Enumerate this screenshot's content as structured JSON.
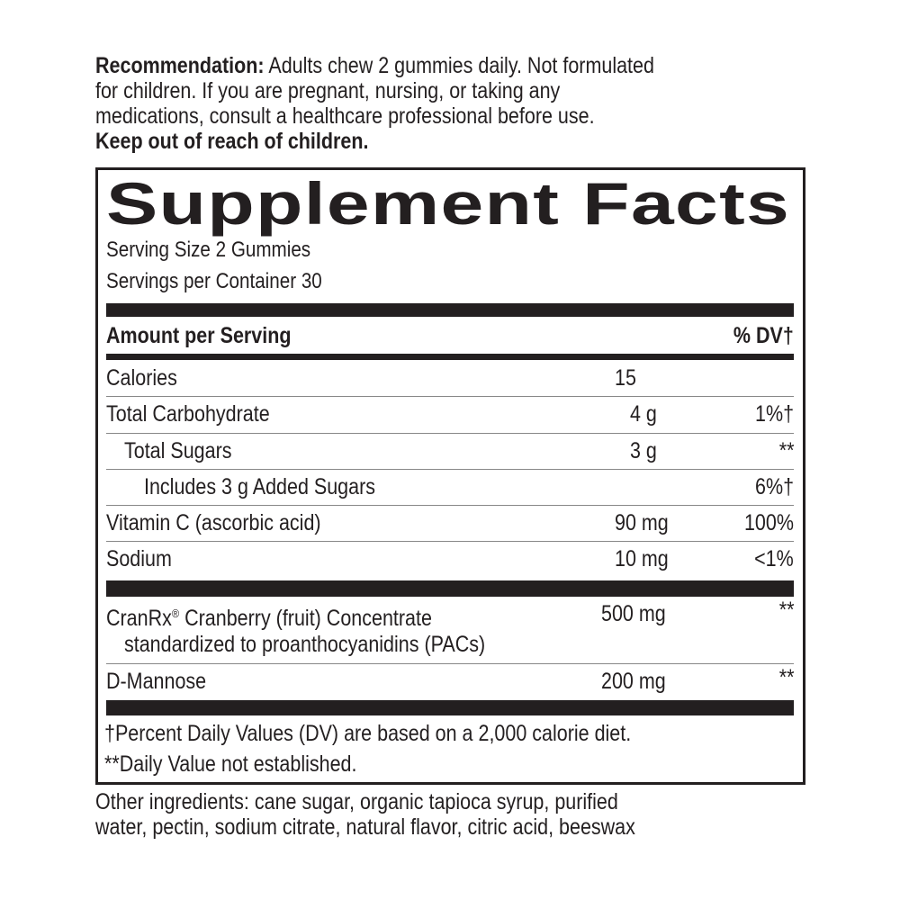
{
  "recommendation": {
    "label": "Recommendation:",
    "lines": [
      " Adults chew 2 gummies daily. Not formulated",
      "for children. If you are pregnant, nursing, or taking any",
      "medications, consult a healthcare professional before use."
    ],
    "warning": "Keep out of reach of children."
  },
  "facts": {
    "title": "Supplement Facts",
    "serving_size": "Serving Size 2 Gummies",
    "servings_per_container": "Servings per Container 30",
    "header_amount": "Amount per Serving",
    "header_dv": "% DV†",
    "rows": [
      {
        "name": "Calories",
        "amount": "15",
        "dv": ""
      },
      {
        "name": "Total Carbohydrate",
        "amount": "4 g",
        "dv": "1%†"
      },
      {
        "name": "Total Sugars",
        "amount": "3 g",
        "dv": "**"
      },
      {
        "name": "Includes 3 g Added Sugars",
        "amount": "",
        "dv": "6%†"
      },
      {
        "name": "Vitamin C (ascorbic acid)",
        "amount": "90 mg",
        "dv": "100%"
      },
      {
        "name": "Sodium",
        "amount": "10 mg",
        "dv": "<1%"
      }
    ],
    "specialty": [
      {
        "name": "CranRx",
        "reg": "®",
        "name_rest": " Cranberry (fruit) Concentrate",
        "name_line2": "standardized to proanthocyanidins (PACs)",
        "amount": "500 mg",
        "dv": "**"
      },
      {
        "name": "D-Mannose",
        "amount": "200 mg",
        "dv": "**"
      }
    ],
    "footnotes": [
      "†Percent Daily Values (DV) are based on a 2,000 calorie diet.",
      "**Daily Value not established."
    ]
  },
  "other_ingredients": [
    "Other ingredients: cane sugar, organic tapioca syrup, purified",
    "water, pectin, sodium citrate, natural flavor, citric acid, beeswax"
  ]
}
